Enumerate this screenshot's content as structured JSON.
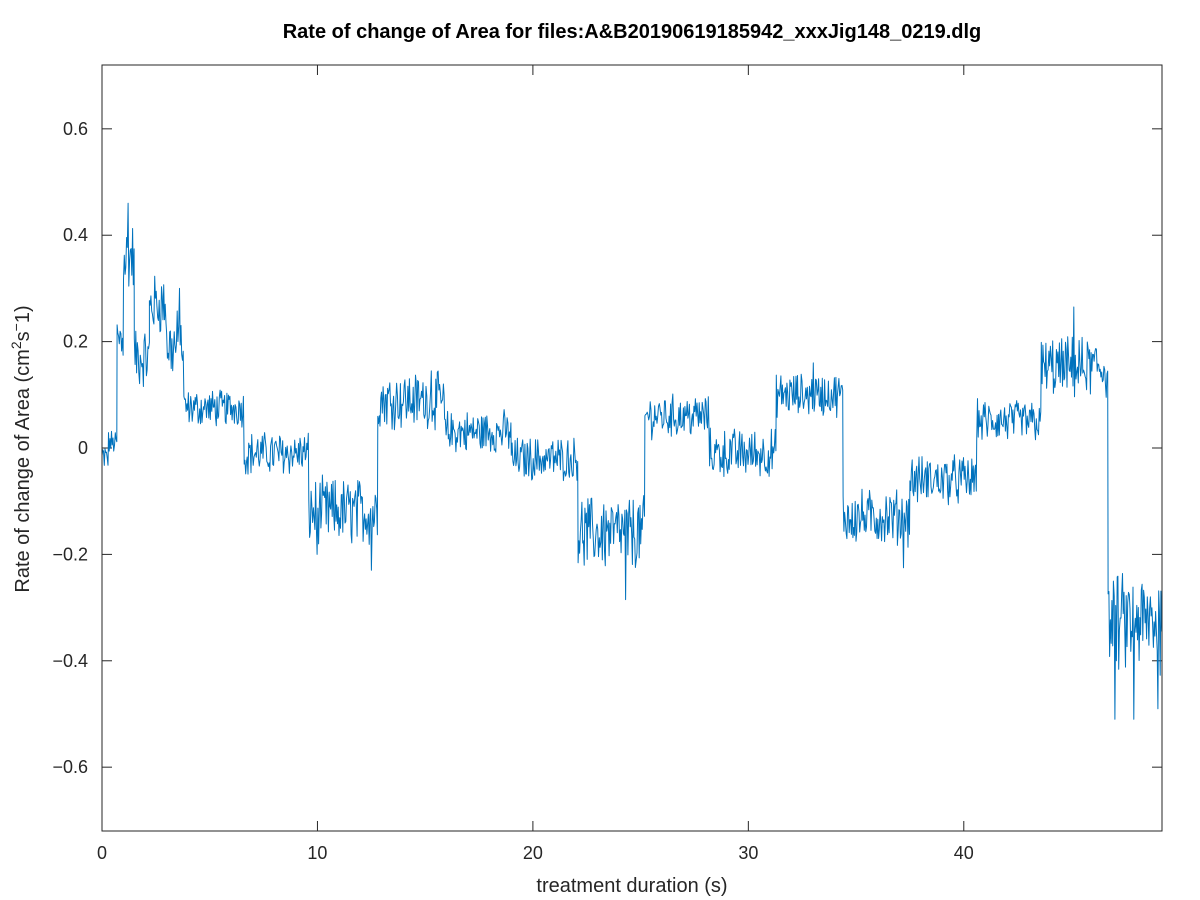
{
  "chart_data": {
    "type": "line",
    "title": "Rate of change of Area for files:A&B20190619185942_xxxJig148_0219.dlg",
    "xlabel": "treatment duration (s)",
    "ylabel": {
      "prefix": "Rate of change of Area (cm",
      "sup1": "2",
      "mid": "s",
      "sup2": "−",
      "suffix": "1)"
    },
    "xlim": [
      0,
      49.2
    ],
    "ylim": [
      -0.72,
      0.72
    ],
    "xticks": [
      0,
      10,
      20,
      30,
      40
    ],
    "xtick_labels": [
      "0",
      "10",
      "20",
      "30",
      "40"
    ],
    "yticks": [
      -0.6,
      -0.4,
      -0.2,
      0,
      0.2,
      0.4,
      0.6
    ],
    "ytick_labels": [
      "−0.6",
      "−0.4",
      "−0.2",
      "0",
      "0.2",
      "0.4",
      "0.6"
    ],
    "grid": false,
    "box": true,
    "line_color": "#0072BD",
    "series": [
      {
        "segments": [
          {
            "x0": 0.0,
            "x1": 0.3,
            "mean": -0.02,
            "noise": 0.03
          },
          {
            "x0": 0.3,
            "x1": 0.7,
            "mean": 0.01,
            "noise": 0.02
          },
          {
            "x0": 0.7,
            "x1": 1.0,
            "mean": 0.2,
            "noise": 0.06
          },
          {
            "x0": 1.0,
            "x1": 1.5,
            "mean": 0.36,
            "noise": 0.06
          },
          {
            "x0": 1.5,
            "x1": 2.2,
            "mean": 0.17,
            "noise": 0.05
          },
          {
            "x0": 2.2,
            "x1": 3.0,
            "mean": 0.27,
            "noise": 0.05
          },
          {
            "x0": 3.0,
            "x1": 3.8,
            "mean": 0.19,
            "noise": 0.06
          },
          {
            "x0": 3.8,
            "x1": 6.6,
            "mean": 0.075,
            "noise": 0.03
          },
          {
            "x0": 6.6,
            "x1": 9.6,
            "mean": -0.01,
            "noise": 0.035
          },
          {
            "x0": 9.6,
            "x1": 12.8,
            "mean": -0.12,
            "noise": 0.055
          },
          {
            "x0": 12.8,
            "x1": 15.9,
            "mean": 0.09,
            "noise": 0.045
          },
          {
            "x0": 15.9,
            "x1": 19.0,
            "mean": 0.03,
            "noise": 0.035
          },
          {
            "x0": 19.0,
            "x1": 22.1,
            "mean": -0.02,
            "noise": 0.035
          },
          {
            "x0": 22.1,
            "x1": 25.2,
            "mean": -0.16,
            "noise": 0.06
          },
          {
            "x0": 25.2,
            "x1": 28.2,
            "mean": 0.06,
            "noise": 0.035
          },
          {
            "x0": 28.2,
            "x1": 31.3,
            "mean": -0.01,
            "noise": 0.04
          },
          {
            "x0": 31.3,
            "x1": 34.4,
            "mean": 0.1,
            "noise": 0.035
          },
          {
            "x0": 34.4,
            "x1": 37.5,
            "mean": -0.13,
            "noise": 0.045
          },
          {
            "x0": 37.5,
            "x1": 40.6,
            "mean": -0.06,
            "noise": 0.04
          },
          {
            "x0": 40.6,
            "x1": 43.6,
            "mean": 0.05,
            "noise": 0.035
          },
          {
            "x0": 43.6,
            "x1": 46.7,
            "mean": 0.15,
            "noise": 0.05
          },
          {
            "x0": 46.7,
            "x1": 49.2,
            "mean": -0.33,
            "noise": 0.08
          }
        ],
        "peaks": [
          {
            "x": 1.2,
            "y": 0.46
          },
          {
            "x": 3.6,
            "y": 0.3
          },
          {
            "x": 10.0,
            "y": -0.2
          },
          {
            "x": 12.5,
            "y": -0.23
          },
          {
            "x": 15.3,
            "y": 0.145
          },
          {
            "x": 24.3,
            "y": -0.285
          },
          {
            "x": 33.0,
            "y": 0.16
          },
          {
            "x": 37.2,
            "y": -0.225
          },
          {
            "x": 45.1,
            "y": 0.265
          },
          {
            "x": 47.0,
            "y": -0.51
          },
          {
            "x": 47.9,
            "y": -0.51
          },
          {
            "x": 49.0,
            "y": -0.49
          }
        ]
      }
    ]
  }
}
